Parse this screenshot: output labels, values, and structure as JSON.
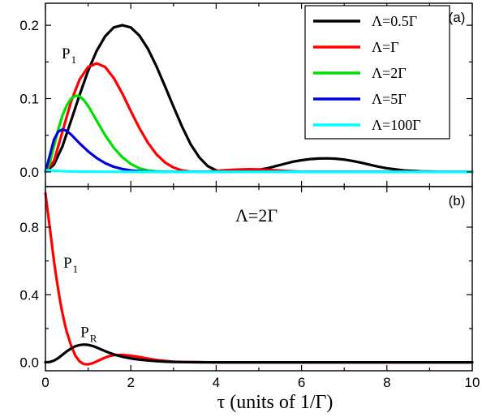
{
  "chart_data": [
    {
      "type": "line",
      "panel_label": "(a)",
      "xlim": [
        0,
        10
      ],
      "ylim": [
        -0.02,
        0.23
      ],
      "xticks": [
        0,
        2,
        4,
        6,
        8,
        10
      ],
      "yticks": [
        0.0,
        0.1,
        0.2
      ],
      "ytick_labels": [
        "0.0",
        "0.1",
        "0.2"
      ],
      "annotations": [
        {
          "text": "P",
          "sub": "1",
          "x": 0.38,
          "y": 0.155
        }
      ],
      "legend": {
        "position": "top-right"
      },
      "series": [
        {
          "name": "Λ=0.5Γ",
          "color": "#000000",
          "x": [
            0,
            0.2,
            0.4,
            0.6,
            0.8,
            1.0,
            1.2,
            1.4,
            1.6,
            1.8,
            2.0,
            2.2,
            2.4,
            2.6,
            2.8,
            3.0,
            3.2,
            3.4,
            3.6,
            3.8,
            4.0,
            4.2,
            4.4,
            4.6,
            4.8,
            5.0,
            5.2,
            5.4,
            5.6,
            5.8,
            6.0,
            6.2,
            6.4,
            6.6,
            6.8,
            7.0,
            7.2,
            7.4,
            7.6,
            7.8,
            8.0,
            8.4,
            8.8,
            9.2,
            9.6,
            10.0
          ],
          "y": [
            0,
            0.01,
            0.035,
            0.07,
            0.105,
            0.138,
            0.165,
            0.185,
            0.197,
            0.2,
            0.197,
            0.186,
            0.168,
            0.144,
            0.117,
            0.089,
            0.062,
            0.038,
            0.02,
            0.008,
            0.002,
            0.0,
            0.0,
            0.0005,
            0.0015,
            0.003,
            0.005,
            0.008,
            0.011,
            0.014,
            0.016,
            0.0175,
            0.0183,
            0.0185,
            0.018,
            0.0168,
            0.015,
            0.0125,
            0.0098,
            0.0072,
            0.005,
            0.002,
            0.0008,
            0.0003,
            0.0001,
            0.0
          ]
        },
        {
          "name": "Λ=Γ",
          "color": "#ff0000",
          "x": [
            0,
            0.2,
            0.4,
            0.6,
            0.8,
            1.0,
            1.2,
            1.4,
            1.6,
            1.8,
            2.0,
            2.2,
            2.4,
            2.6,
            2.8,
            3.0,
            3.2,
            3.4,
            3.6,
            3.8,
            4.0,
            4.2,
            4.4,
            4.6,
            4.8,
            5.0,
            5.2,
            5.4,
            5.6,
            5.8,
            6.0,
            6.4,
            7.0,
            8.0,
            9.0,
            10.0
          ],
          "y": [
            0,
            0.015,
            0.055,
            0.096,
            0.126,
            0.143,
            0.148,
            0.143,
            0.128,
            0.107,
            0.083,
            0.06,
            0.04,
            0.024,
            0.013,
            0.006,
            0.002,
            0.0003,
            0.0,
            0.0005,
            0.0012,
            0.0022,
            0.003,
            0.0035,
            0.0037,
            0.0035,
            0.0029,
            0.0021,
            0.0014,
            0.0008,
            0.0004,
            0.0001,
            0.0,
            0.0,
            0.0,
            0.0
          ]
        },
        {
          "name": "Λ=2Γ",
          "color": "#00e000",
          "x": [
            0,
            0.1,
            0.2,
            0.3,
            0.4,
            0.5,
            0.6,
            0.7,
            0.8,
            0.9,
            1.0,
            1.2,
            1.4,
            1.6,
            1.8,
            2.0,
            2.2,
            2.4,
            2.6,
            2.8,
            3.0,
            3.4,
            4.0,
            5.0,
            6.0,
            8.0,
            10.0
          ],
          "y": [
            0,
            0.012,
            0.035,
            0.058,
            0.077,
            0.091,
            0.1,
            0.104,
            0.103,
            0.098,
            0.09,
            0.07,
            0.05,
            0.033,
            0.02,
            0.011,
            0.005,
            0.002,
            0.0008,
            0.0003,
            0.0001,
            0.0,
            0.0,
            0.0,
            0.0,
            0.0,
            0.0
          ]
        },
        {
          "name": "Λ=5Γ",
          "color": "#0000dd",
          "x": [
            0,
            0.1,
            0.2,
            0.3,
            0.4,
            0.5,
            0.6,
            0.7,
            0.8,
            1.0,
            1.2,
            1.4,
            1.6,
            1.8,
            2.0,
            2.2,
            2.4,
            2.8,
            3.2,
            4.0,
            6.0,
            8.0,
            10.0
          ],
          "y": [
            0,
            0.022,
            0.044,
            0.055,
            0.058,
            0.056,
            0.051,
            0.045,
            0.039,
            0.028,
            0.019,
            0.012,
            0.007,
            0.004,
            0.002,
            0.001,
            0.0005,
            0.0001,
            0.0,
            0.0,
            0.0,
            0.0,
            0.0
          ]
        },
        {
          "name": "Λ=100Γ",
          "color": "#00ffff",
          "x": [
            0,
            0.03,
            0.08,
            0.2,
            0.5,
            1.0,
            2.0,
            3.0,
            4.0,
            6.0,
            8.0,
            10.0
          ],
          "y": [
            0,
            0.0025,
            0.0022,
            0.0015,
            0.0008,
            0.0004,
            0.0001,
            0.0,
            0.0,
            0.0,
            0.0,
            0.0
          ]
        }
      ]
    },
    {
      "type": "line",
      "panel_label": "(b)",
      "title": "Λ=2Γ",
      "xlabel": "τ (units of 1/Γ)",
      "xlim": [
        0,
        10
      ],
      "ylim": [
        -0.05,
        1.04
      ],
      "xticks": [
        0,
        2,
        4,
        6,
        8,
        10
      ],
      "yticks": [
        0.0,
        0.4,
        0.8
      ],
      "ytick_labels": [
        "0.0",
        "0.4",
        "0.8"
      ],
      "annotations": [
        {
          "text": "P",
          "sub": "1",
          "x": 0.42,
          "y": 0.56,
          "color": "#ff0000"
        },
        {
          "text": "P",
          "sub": "R",
          "x": 0.82,
          "y": 0.15,
          "color": "#000000"
        }
      ],
      "series": [
        {
          "name": "P1",
          "color": "#ff0000",
          "x": [
            0,
            0.05,
            0.1,
            0.15,
            0.2,
            0.25,
            0.3,
            0.35,
            0.4,
            0.45,
            0.5,
            0.6,
            0.7,
            0.8,
            0.9,
            1.0,
            1.1,
            1.2,
            1.3,
            1.4,
            1.5,
            1.6,
            1.8,
            2.0,
            2.2,
            2.4,
            2.6,
            2.8,
            3.0,
            3.2,
            3.4,
            3.6,
            4.0,
            5.0,
            7.0,
            10.0
          ],
          "y": [
            1.0,
            0.9,
            0.8,
            0.7,
            0.6,
            0.51,
            0.43,
            0.355,
            0.29,
            0.23,
            0.18,
            0.1,
            0.04,
            0.005,
            -0.01,
            -0.012,
            -0.006,
            0.005,
            0.017,
            0.028,
            0.037,
            0.042,
            0.044,
            0.039,
            0.031,
            0.022,
            0.014,
            0.008,
            0.004,
            0.002,
            0.001,
            0.0005,
            0.0,
            0.0,
            0.0,
            0.0
          ]
        },
        {
          "name": "PR",
          "color": "#000000",
          "x": [
            0,
            0.1,
            0.2,
            0.3,
            0.4,
            0.5,
            0.6,
            0.7,
            0.8,
            0.9,
            1.0,
            1.1,
            1.2,
            1.3,
            1.4,
            1.5,
            1.6,
            1.8,
            2.0,
            2.2,
            2.4,
            2.6,
            2.8,
            3.0,
            3.2,
            3.6,
            4.0,
            5.0,
            7.0,
            10.0
          ],
          "y": [
            0.0,
            0.002,
            0.01,
            0.025,
            0.045,
            0.065,
            0.082,
            0.095,
            0.102,
            0.105,
            0.103,
            0.097,
            0.088,
            0.077,
            0.066,
            0.056,
            0.047,
            0.033,
            0.023,
            0.016,
            0.011,
            0.007,
            0.004,
            0.0025,
            0.0015,
            0.0005,
            0.0,
            0.0,
            0.0,
            0.0
          ]
        }
      ]
    }
  ]
}
